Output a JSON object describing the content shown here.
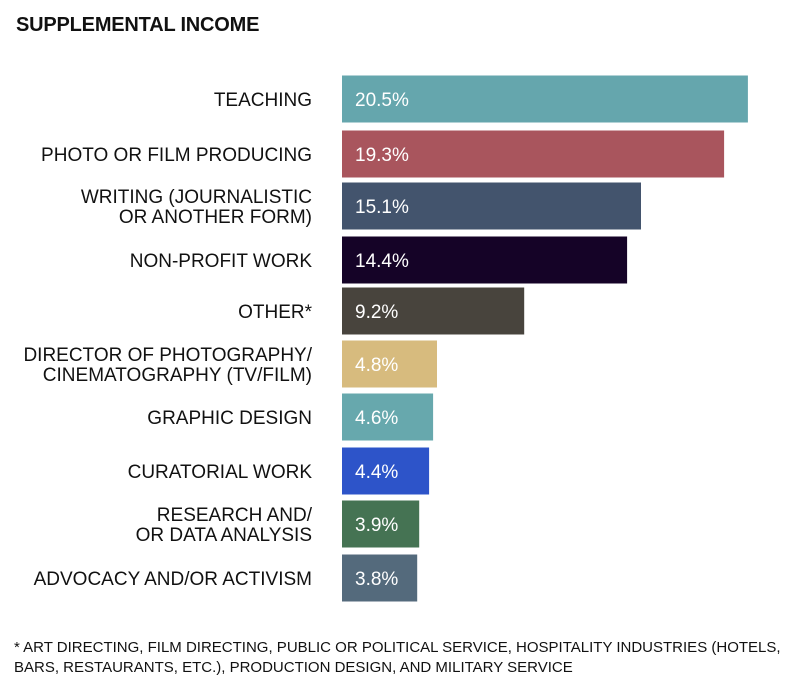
{
  "chart_data": {
    "type": "bar",
    "orientation": "horizontal",
    "title": "SUPPLEMENTAL INCOME",
    "categories": [
      [
        "TEACHING"
      ],
      [
        "PHOTO OR FILM PRODUCING"
      ],
      [
        "WRITING (JOURNALISTIC",
        "OR ANOTHER FORM)"
      ],
      [
        "NON-PROFIT WORK"
      ],
      [
        "OTHER*"
      ],
      [
        "DIRECTOR OF PHOTOGRAPHY/",
        "CINEMATOGRAPHY (TV/FILM)"
      ],
      [
        "GRAPHIC DESIGN"
      ],
      [
        "CURATORIAL WORK"
      ],
      [
        "RESEARCH AND/",
        "OR DATA ANALYSIS"
      ],
      [
        "ADVOCACY AND/OR ACTIVISM"
      ]
    ],
    "values": [
      20.5,
      19.3,
      15.1,
      14.4,
      9.2,
      4.8,
      4.6,
      4.4,
      3.9,
      3.8
    ],
    "value_labels": [
      "20.5%",
      "19.3%",
      "15.1%",
      "14.4%",
      "9.2%",
      "4.8%",
      "4.6%",
      "4.4%",
      "3.9%",
      "3.8%"
    ],
    "colors": [
      "#65a6ad",
      "#a9555d",
      "#43546d",
      "#150327",
      "#48443d",
      "#d7bb7e",
      "#67a8ad",
      "#2d54c9",
      "#457353",
      "#546a7c"
    ],
    "xlabel": "",
    "ylabel": "",
    "grid": false,
    "legend": "none"
  },
  "footnote": "* ART DIRECTING, FILM DIRECTING, PUBLIC OR POLITICAL SERVICE, HOSPITALITY INDUSTRIES (HOTELS, BARS, RESTAURANTS, ETC.), PRODUCTION DESIGN, AND MILITARY SERVICE"
}
